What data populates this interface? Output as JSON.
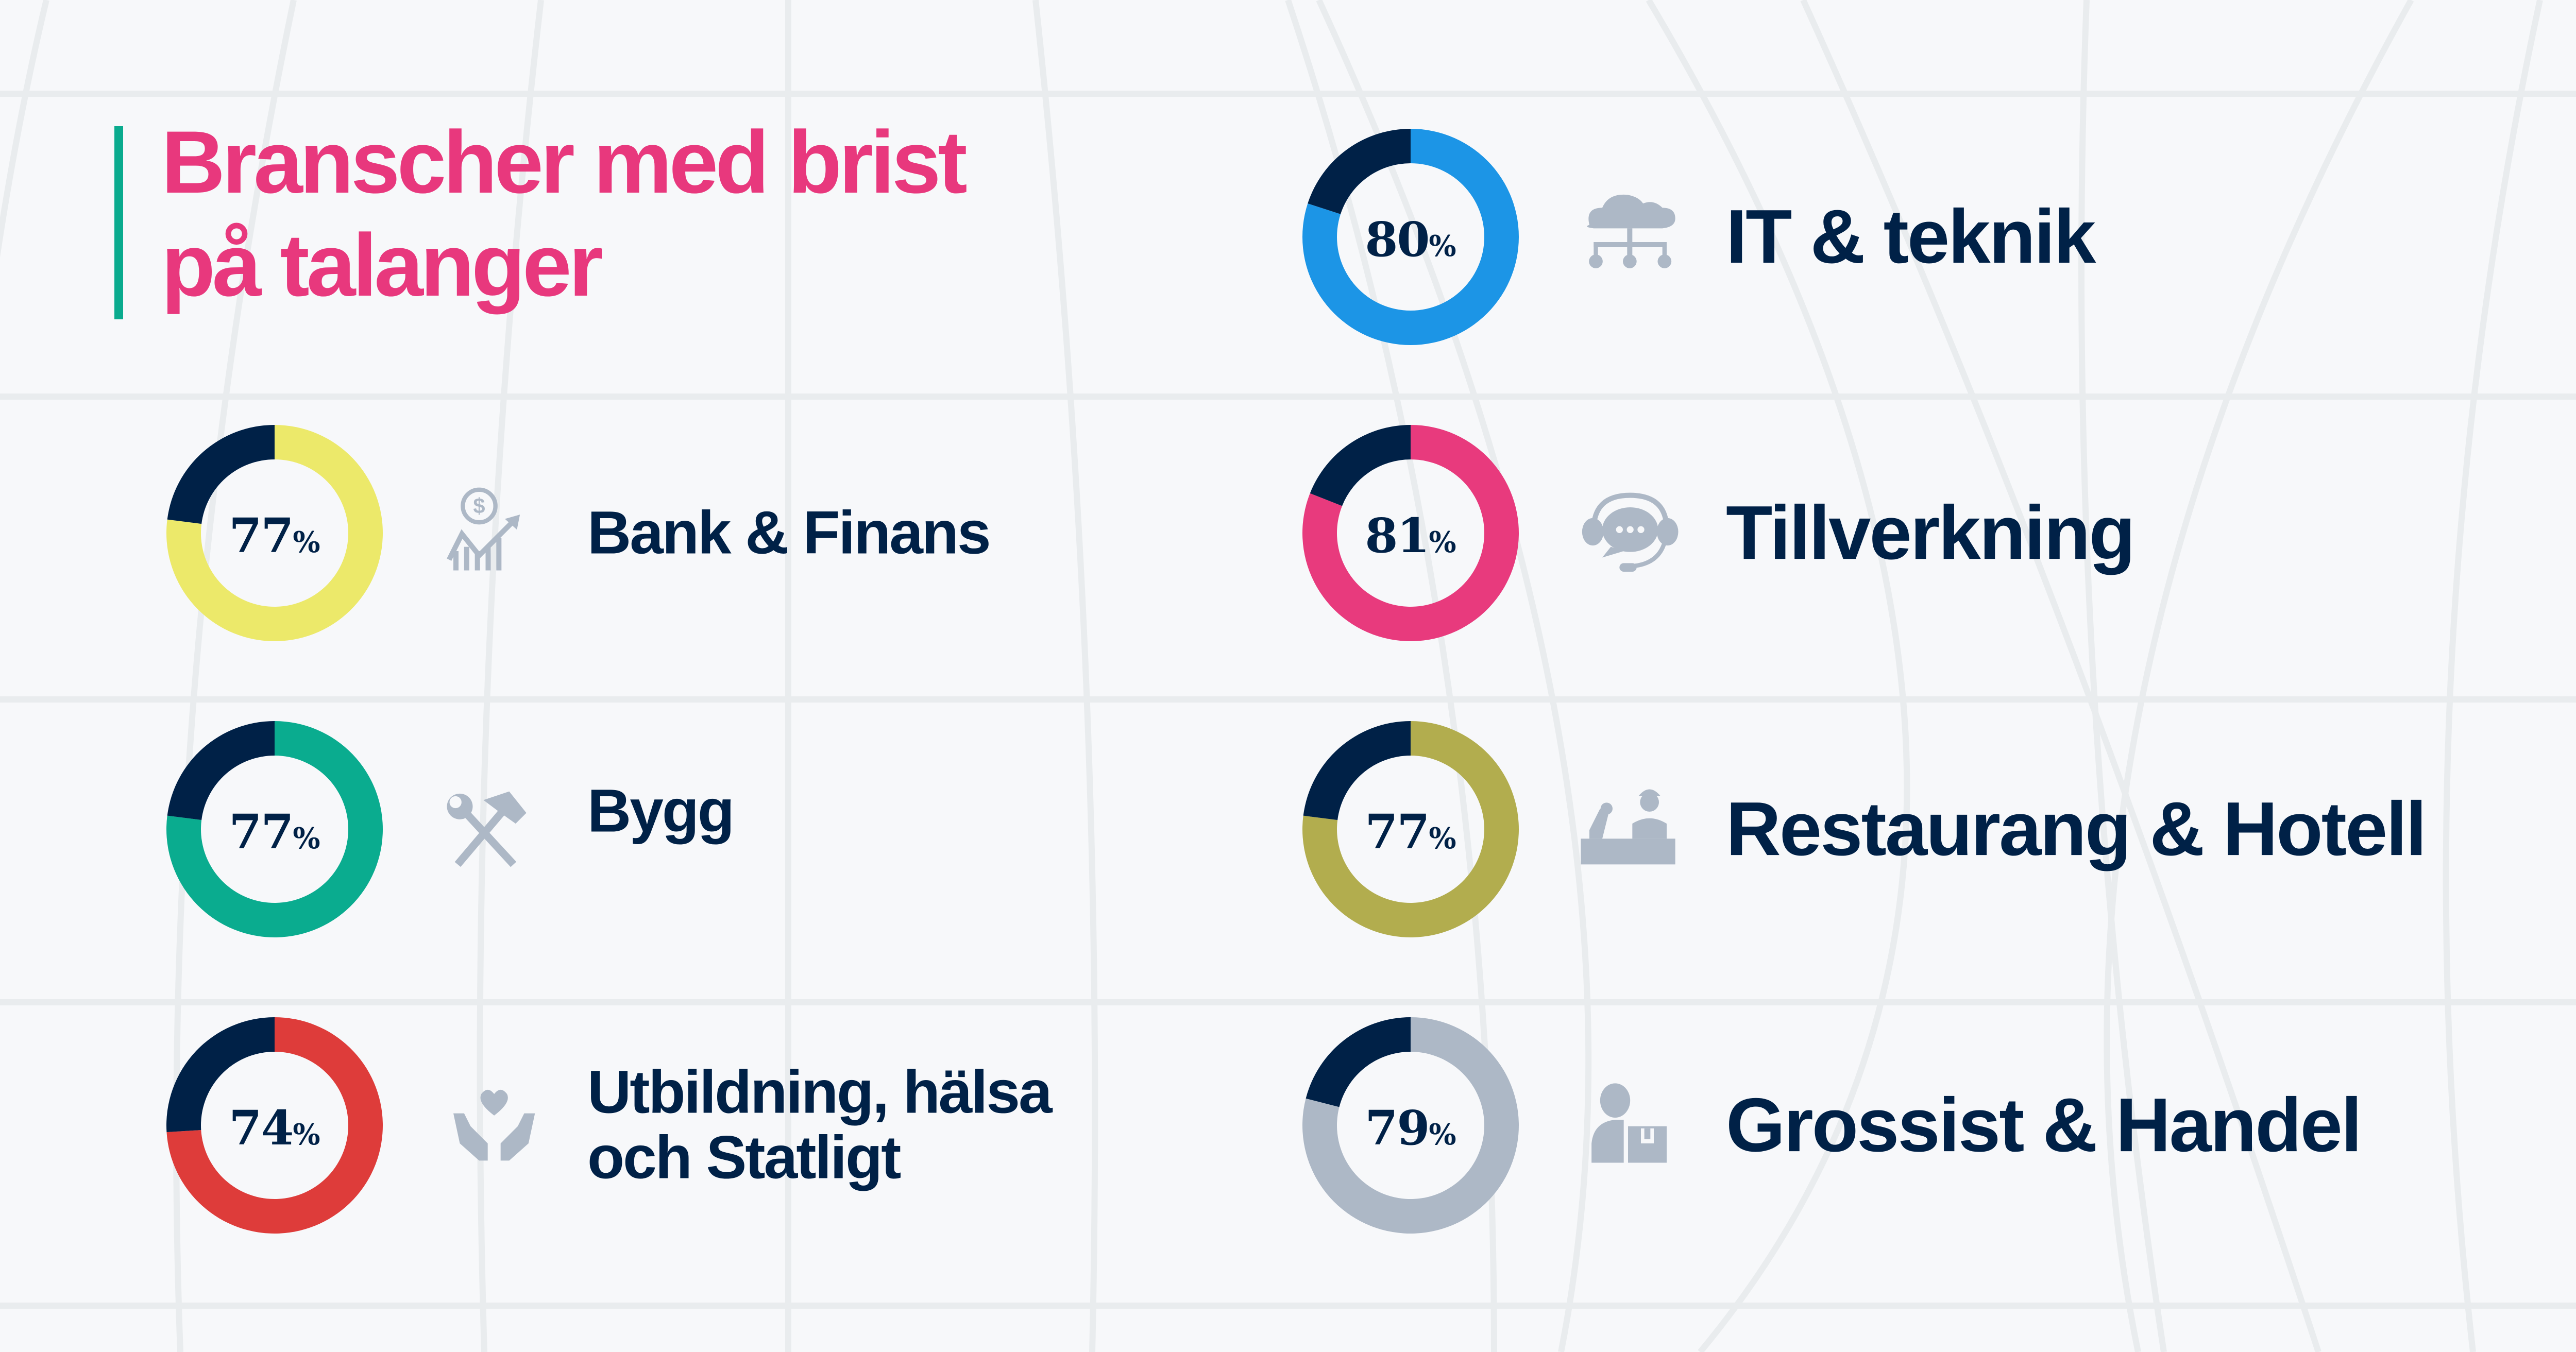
{
  "title": {
    "line1": "Branscher med brist",
    "line2": "på talanger"
  },
  "colors": {
    "title": "#e8387d",
    "accent_bar": "#0aab8e",
    "text": "#002147",
    "remainder": "#002147",
    "icon": "#adb8c6",
    "grid": "#e9ecee",
    "background": "#f7f8fa"
  },
  "chart_data": {
    "type": "pie",
    "variant": "donut",
    "title": "Branscher med brist på talanger",
    "unit": "%",
    "series": [
      {
        "label_lines": [
          "IT & teknik"
        ],
        "value": 80,
        "percent_text": "80",
        "color": "#1c95e6",
        "icon": "cloud-network-icon"
      },
      {
        "label_lines": [
          "Bank & Finans"
        ],
        "value": 77,
        "percent_text": "77",
        "color": "#ece96a",
        "icon": "money-growth-chart-icon"
      },
      {
        "label_lines": [
          "Tillverkning"
        ],
        "value": 81,
        "percent_text": "81",
        "color": "#e83a7d",
        "icon": "headset-chat-icon"
      },
      {
        "label_lines": [
          "Bygg"
        ],
        "value": 77,
        "percent_text": "77",
        "color": "#0aac8f",
        "icon": "hammer-wrench-icon"
      },
      {
        "label_lines": [
          "Restaurang & Hotell"
        ],
        "value": 77,
        "percent_text": "77",
        "color": "#b2ad4e",
        "icon": "worker-factory-icon"
      },
      {
        "label_lines": [
          "Utbildning, hälsa",
          "och Statligt"
        ],
        "value": 74,
        "percent_text": "74",
        "color": "#de3c3a",
        "icon": "hands-heart-icon"
      },
      {
        "label_lines": [
          "Grossist & Handel"
        ],
        "value": 79,
        "percent_text": "79",
        "color": "#adb8c6",
        "icon": "person-box-icon"
      }
    ]
  }
}
